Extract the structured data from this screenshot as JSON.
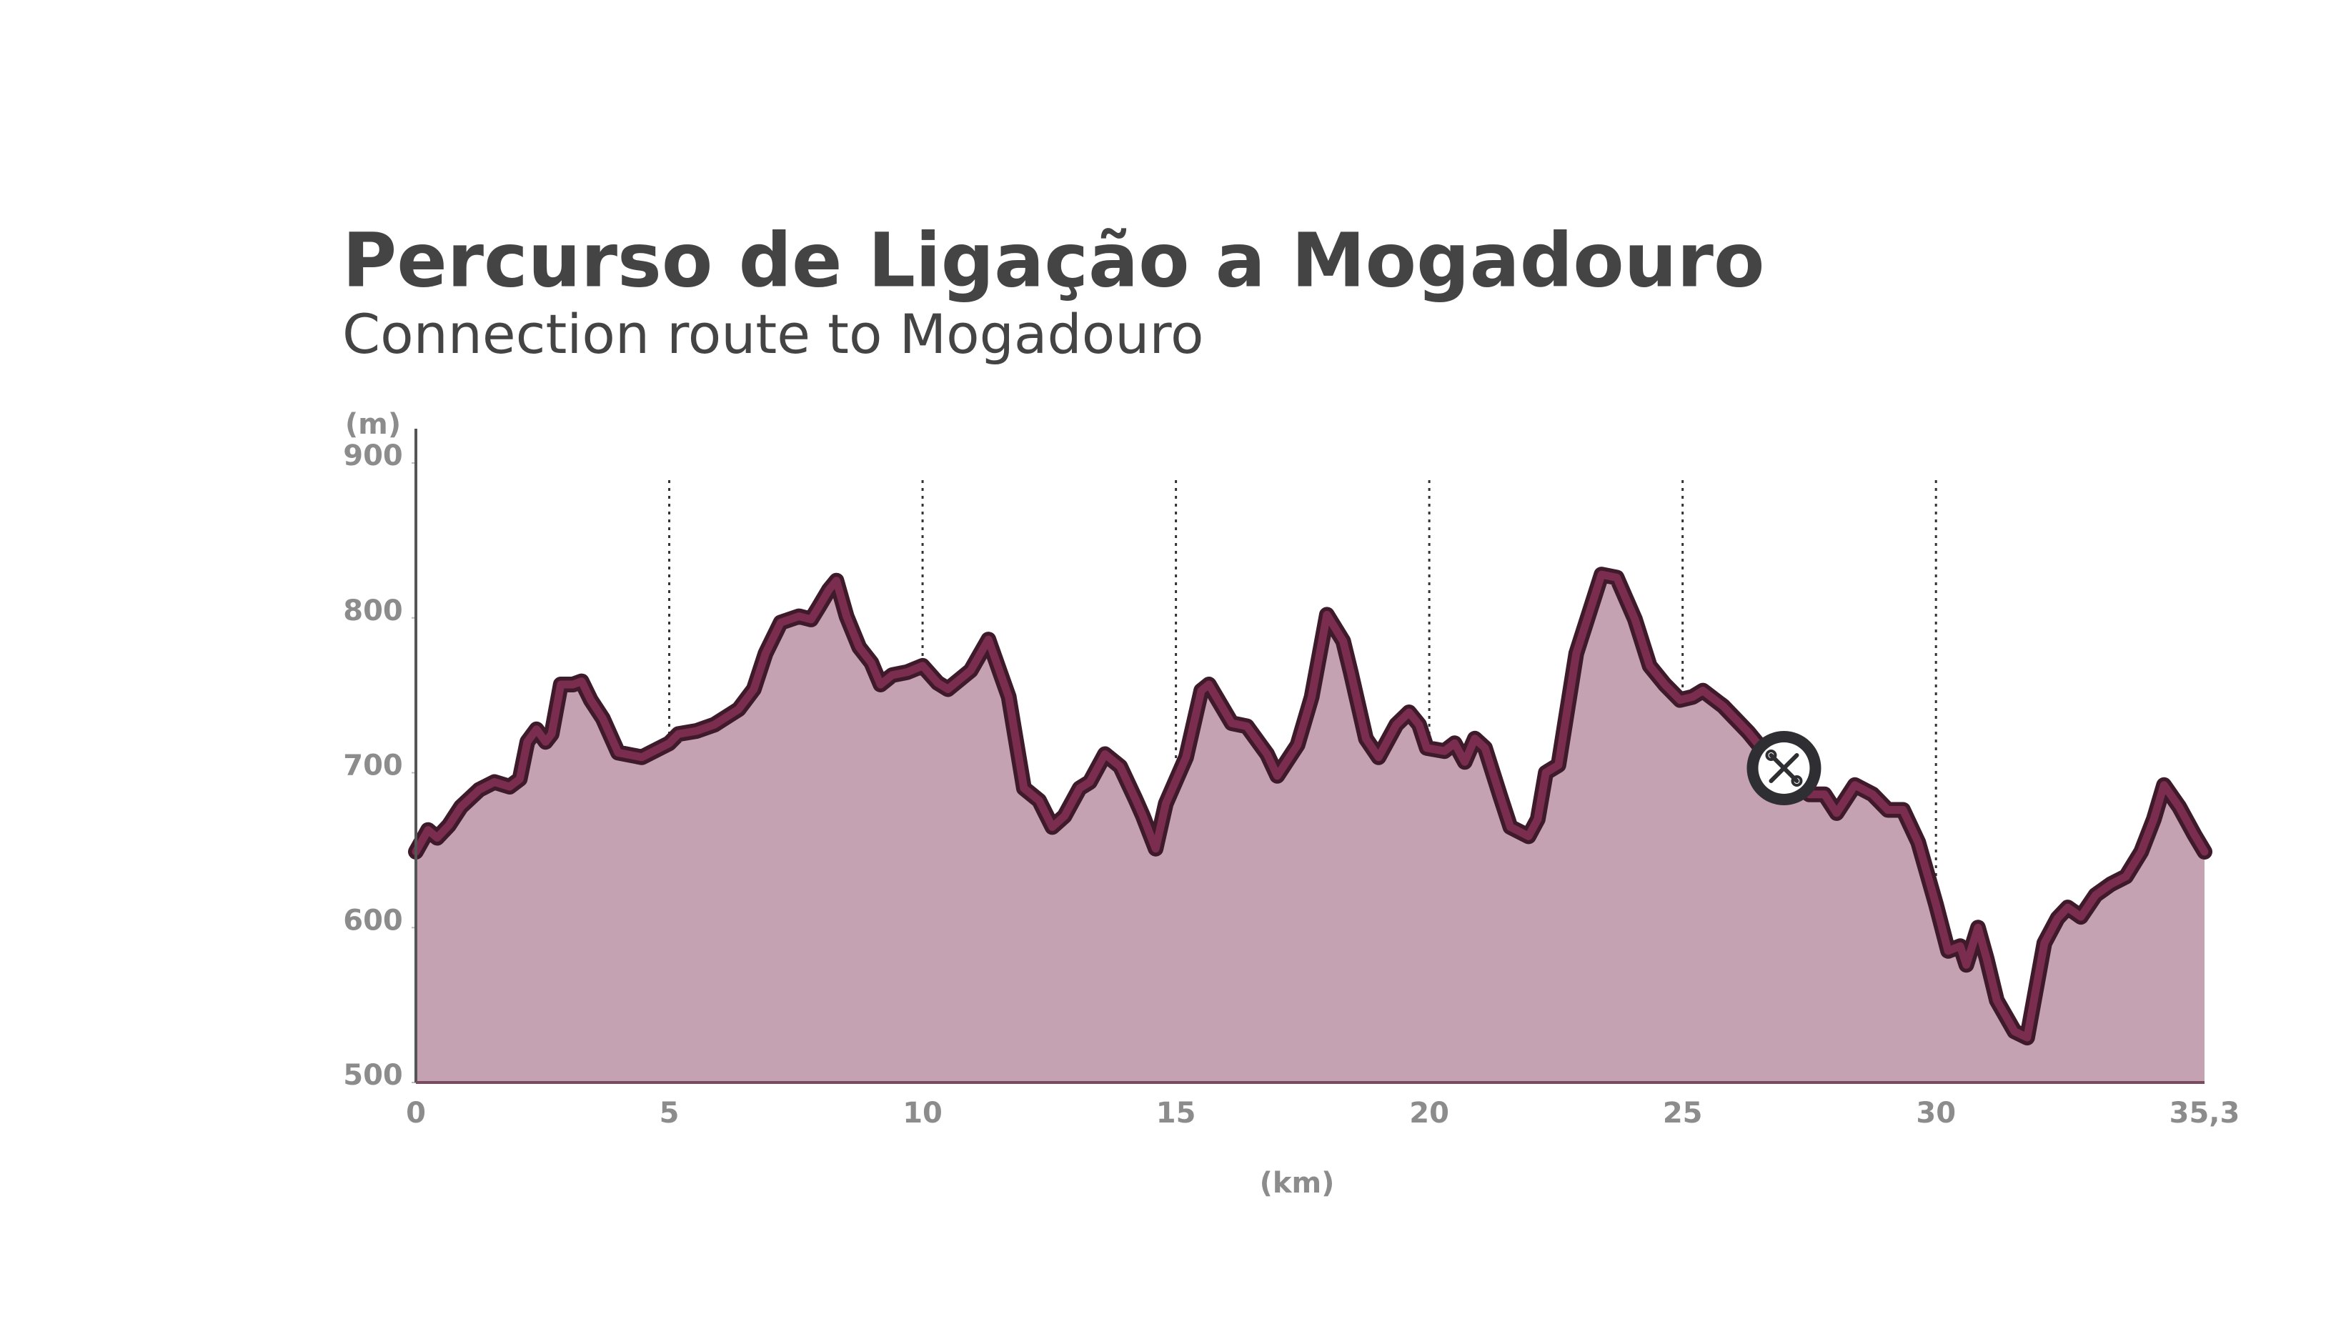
{
  "chart_data": {
    "type": "area",
    "title": "Percurso de Ligação a Mogadouro",
    "subtitle": "Connection route to Mogadouro",
    "y_label": "(m)",
    "x_label": "(km)",
    "xlim": [
      0,
      35.3
    ],
    "ylim": [
      500,
      900
    ],
    "xticks": [
      0,
      5,
      10,
      15,
      20,
      25,
      30,
      {
        "value": 35.3,
        "label": "35,3"
      }
    ],
    "yticks": [
      500,
      600,
      700,
      800,
      900
    ],
    "grid": true,
    "color": "#7a2d4f",
    "fill": "#c4a2b2",
    "x": [
      0,
      0.24,
      0.42,
      0.65,
      0.89,
      1.25,
      1.55,
      1.85,
      2.05,
      2.2,
      2.38,
      2.56,
      2.68,
      2.86,
      3.1,
      3.27,
      3.45,
      3.69,
      3.99,
      4.46,
      5,
      5.18,
      5.54,
      5.89,
      6.37,
      6.67,
      6.9,
      7.2,
      7.56,
      7.8,
      7.95,
      8.15,
      8.3,
      8.5,
      8.75,
      8.99,
      9.17,
      9.4,
      9.7,
      10,
      10.3,
      10.5,
      10.95,
      11.3,
      11.7,
      12.0,
      12.3,
      12.56,
      12.8,
      13.1,
      13.3,
      13.6,
      13.9,
      14.2,
      14.35,
      14.6,
      14.8,
      15.2,
      15.5,
      15.65,
      16.1,
      16.4,
      16.8,
      17.0,
      17.4,
      17.68,
      17.98,
      18.3,
      18.45,
      18.75,
      19.0,
      19.35,
      19.6,
      19.8,
      19.95,
      20.3,
      20.5,
      20.7,
      20.9,
      21.1,
      21.4,
      21.6,
      21.96,
      22.14,
      22.3,
      22.55,
      22.9,
      23.4,
      23.7,
      24.06,
      24.35,
      24.65,
      24.95,
      25.2,
      25.4,
      25.8,
      26.3,
      27.0,
      27.5,
      27.8,
      28.04,
      28.4,
      28.75,
      29.05,
      29.35,
      29.65,
      30.0,
      30.24,
      30.48,
      30.6,
      30.83,
      31.0,
      31.2,
      31.55,
      31.8,
      32.14,
      32.4,
      32.6,
      32.86,
      33.15,
      33.45,
      33.75,
      34.05,
      34.3,
      34.5,
      34.8,
      35.1,
      35.3
    ],
    "values": [
      649,
      663,
      658,
      666,
      678,
      689,
      694,
      691,
      696,
      720,
      728,
      720,
      725,
      757,
      757,
      759,
      747,
      735,
      713,
      710,
      719,
      725,
      727,
      731,
      741,
      754,
      777,
      797,
      801,
      799,
      807,
      818,
      824,
      801,
      781,
      771,
      757,
      763,
      765,
      769,
      758,
      754,
      766,
      786,
      749,
      690,
      682,
      665,
      672,
      690,
      694,
      712,
      704,
      683,
      672,
      651,
      680,
      710,
      753,
      757,
      732,
      730,
      712,
      698,
      718,
      749,
      802,
      785,
      765,
      722,
      710,
      731,
      739,
      731,
      716,
      714,
      719,
      707,
      722,
      716,
      685,
      665,
      659,
      670,
      700,
      705,
      777,
      828,
      826,
      799,
      769,
      757,
      747,
      749,
      753,
      743,
      726,
      698,
      686,
      686,
      674,
      692,
      686,
      676,
      676,
      655,
      615,
      585,
      588,
      576,
      600,
      580,
      553,
      533,
      529,
      590,
      606,
      613,
      607,
      621,
      628,
      633,
      649,
      670,
      692,
      678,
      660,
      649
    ],
    "service_point": {
      "x": 27,
      "y": 703
    }
  }
}
